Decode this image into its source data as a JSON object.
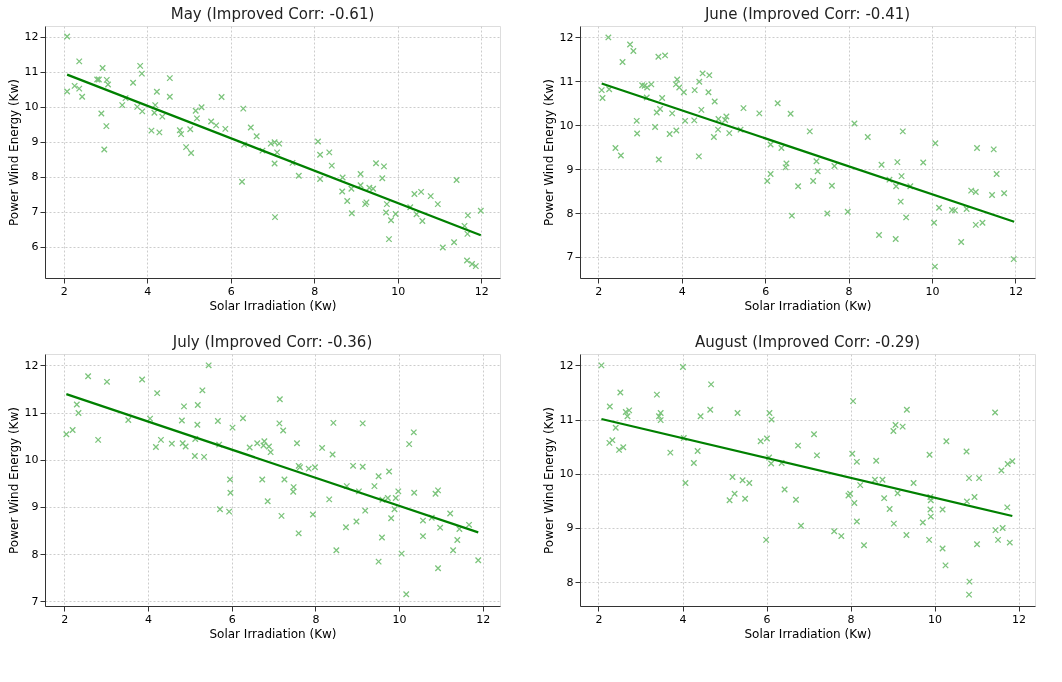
{
  "chart_data": [
    {
      "type": "scatter",
      "title": "May (Improved Corr: -0.61)",
      "xlabel": "Solar Irradiation (Kw)",
      "ylabel": "Power Wind Energy (Kw)",
      "xlim": [
        1.55,
        12.45
      ],
      "ylim": [
        5.1,
        12.3
      ],
      "xticks": [
        2,
        4,
        6,
        8,
        10,
        12
      ],
      "yticks": [
        6,
        7,
        8,
        9,
        10,
        11,
        12
      ],
      "grid": true,
      "series": [
        {
          "type": "scatter",
          "marker": "cross",
          "color": "#7cc47c",
          "x": [
            2.08,
            2.37,
            2.08,
            2.26,
            2.37,
            2.44,
            2.93,
            2.8,
            2.84,
            3.03,
            3.06,
            2.9,
            3.02,
            2.97,
            3.66,
            3.83,
            3.87,
            3.4,
            3.48,
            3.76,
            3.88,
            4.23,
            4.19,
            4.17,
            4.36,
            4.1,
            4.29,
            4.54,
            4.54,
            4.78,
            4.81,
            5.03,
            4.93,
            5.05,
            5.16,
            5.3,
            5.19,
            5.53,
            5.65,
            5.78,
            5.87,
            6.3,
            6.32,
            6.27,
            6.48,
            6.62,
            6.76,
            6.96,
            7.05,
            7.16,
            7.11,
            7.05,
            7.06,
            7.48,
            7.63,
            8.09,
            8.14,
            8.36,
            8.42,
            8.14,
            8.68,
            8.67,
            8.89,
            8.79,
            8.9,
            9.11,
            9.11,
            9.32,
            9.41,
            9.22,
            9.25,
            9.48,
            9.67,
            9.63,
            9.74,
            9.72,
            9.84,
            9.95,
            9.79,
            10.3,
            10.45,
            10.4,
            10.56,
            10.59,
            10.79,
            10.96,
            11.08,
            11.35,
            11.41,
            11.6,
            11.68,
            11.67,
            11.66,
            11.78,
            11.87,
            11.99
          ],
          "values": [
            12.0,
            11.29,
            10.43,
            10.59,
            10.51,
            10.28,
            11.1,
            10.77,
            10.77,
            10.76,
            10.63,
            9.8,
            9.44,
            8.77,
            10.68,
            11.16,
            10.94,
            10.04,
            10.24,
            9.99,
            9.86,
            10.42,
            10.04,
            9.82,
            9.71,
            9.31,
            9.26,
            10.81,
            10.28,
            9.32,
            9.21,
            9.35,
            8.84,
            8.67,
            9.88,
            9.98,
            9.66,
            9.57,
            9.46,
            10.27,
            9.36,
            9.94,
            8.91,
            7.85,
            9.4,
            9.15,
            8.74,
            8.94,
            8.98,
            8.94,
            8.69,
            8.37,
            6.84,
            8.39,
            8.02,
            9.0,
            8.62,
            8.69,
            8.31,
            7.93,
            7.97,
            7.57,
            7.65,
            7.3,
            6.95,
            8.07,
            7.75,
            7.68,
            7.65,
            7.21,
            7.26,
            8.38,
            8.29,
            7.95,
            7.21,
            6.97,
            6.75,
            6.93,
            6.21,
            7.12,
            6.92,
            7.5,
            7.56,
            6.73,
            7.44,
            7.21,
            5.97,
            6.12,
            7.9,
            6.59,
            6.89,
            6.36,
            5.6,
            5.5,
            5.44,
            7.02
          ]
        },
        {
          "type": "line",
          "marker": "none",
          "line_style": "solid",
          "color": "#008000",
          "x": [
            2.08,
            11.99
          ],
          "values": [
            10.91,
            6.32
          ]
        }
      ]
    },
    {
      "type": "scatter",
      "title": "June (Improved Corr: -0.41)",
      "xlabel": "Solar Irradiation (Kw)",
      "ylabel": "Power Wind Energy (Kw)",
      "xlim": [
        1.56,
        12.47
      ],
      "ylim": [
        6.52,
        12.26
      ],
      "xticks": [
        2,
        4,
        6,
        8,
        10,
        12
      ],
      "yticks": [
        7,
        8,
        9,
        10,
        11,
        12
      ],
      "grid": true,
      "series": [
        {
          "type": "scatter",
          "marker": "cross",
          "color": "#7cc47c",
          "x": [
            2.24,
            2.08,
            2.1,
            2.26,
            2.58,
            2.76,
            2.84,
            2.41,
            2.54,
            2.92,
            2.93,
            3.05,
            3.11,
            3.17,
            3.27,
            3.16,
            3.44,
            3.6,
            3.53,
            3.48,
            3.4,
            3.36,
            3.45,
            3.77,
            3.71,
            3.87,
            3.89,
            3.86,
            3.94,
            4.05,
            4.08,
            4.31,
            4.42,
            4.5,
            4.66,
            4.64,
            4.47,
            4.3,
            4.41,
            4.79,
            4.88,
            5.04,
            5.07,
            4.87,
            4.77,
            5.14,
            5.41,
            5.48,
            5.86,
            6.3,
            6.61,
            6.13,
            6.39,
            6.05,
            6.13,
            6.51,
            6.49,
            6.79,
            6.64,
            7.07,
            7.23,
            7.26,
            7.15,
            7.66,
            7.6,
            7.49,
            7.98,
            8.14,
            8.46,
            8.79,
            8.73,
            8.98,
            9.14,
            9.17,
            9.27,
            9.3,
            9.25,
            9.38,
            9.13,
            9.48,
            9.79,
            10.08,
            10.05,
            10.07,
            10.17,
            10.48,
            10.55,
            10.83,
            10.7,
            10.94,
            11.05,
            11.08,
            11.05,
            11.21,
            11.48,
            11.55,
            11.44,
            11.73,
            11.96
          ],
          "values": [
            12.0,
            10.8,
            10.62,
            10.82,
            11.44,
            11.84,
            11.69,
            9.48,
            9.31,
            10.1,
            9.81,
            10.91,
            10.9,
            10.86,
            10.93,
            10.63,
            11.56,
            11.59,
            10.62,
            10.37,
            10.29,
            9.96,
            9.22,
            10.27,
            9.8,
            9.88,
            11.04,
            10.93,
            10.86,
            10.75,
            10.1,
            10.8,
            10.99,
            11.18,
            11.14,
            10.75,
            10.35,
            10.11,
            9.29,
            10.54,
            10.14,
            10.12,
            10.2,
            9.9,
            9.73,
            9.82,
            9.9,
            10.39,
            10.27,
            10.5,
            10.26,
            9.56,
            9.48,
            8.73,
            8.89,
            9.13,
            9.04,
            8.61,
            7.94,
            9.86,
            9.18,
            8.95,
            8.73,
            9.07,
            8.62,
            7.99,
            8.03,
            10.04,
            9.73,
            9.1,
            7.5,
            8.76,
            8.61,
            9.16,
            8.84,
            9.86,
            8.26,
            7.9,
            7.41,
            8.61,
            9.15,
            9.59,
            7.78,
            6.78,
            8.12,
            8.07,
            8.06,
            8.09,
            7.34,
            8.51,
            8.48,
            9.48,
            7.73,
            7.78,
            9.45,
            8.89,
            8.41,
            8.45,
            6.95
          ]
        },
        {
          "type": "line",
          "marker": "none",
          "line_style": "solid",
          "color": "#008000",
          "x": [
            2.08,
            11.97
          ],
          "values": [
            10.95,
            7.8
          ]
        }
      ]
    },
    {
      "type": "scatter",
      "title": "July (Improved Corr: -0.36)",
      "xlabel": "Solar Irradiation (Kw)",
      "ylabel": "Power Wind Energy (Kw)",
      "xlim": [
        1.54,
        12.41
      ],
      "ylim": [
        6.9,
        12.24
      ],
      "xticks": [
        2,
        4,
        6,
        8,
        10,
        12
      ],
      "yticks": [
        7,
        8,
        9,
        10,
        11,
        12
      ],
      "grid": true,
      "series": [
        {
          "type": "scatter",
          "marker": "cross",
          "color": "#7cc47c",
          "x": [
            2.05,
            2.2,
            2.3,
            2.34,
            2.57,
            2.81,
            3.02,
            3.53,
            3.86,
            4.05,
            4.22,
            4.19,
            4.31,
            4.57,
            4.81,
            4.86,
            4.83,
            4.9,
            5.13,
            5.18,
            5.19,
            5.3,
            5.45,
            5.12,
            5.34,
            5.67,
            5.7,
            5.72,
            5.96,
            5.97,
            5.94,
            6.02,
            6.27,
            6.43,
            6.61,
            6.78,
            6.76,
            6.89,
            6.93,
            6.73,
            6.86,
            7.15,
            7.14,
            7.23,
            7.26,
            7.19,
            7.48,
            7.47,
            7.56,
            7.6,
            7.63,
            7.6,
            7.84,
            7.99,
            7.94,
            8.16,
            8.41,
            8.43,
            8.33,
            8.5,
            8.75,
            8.73,
            8.9,
            9.04,
            8.98,
            9.13,
            9.13,
            9.19,
            9.41,
            9.51,
            9.6,
            9.73,
            9.76,
            9.81,
            9.59,
            9.51,
            9.89,
            9.92,
            9.98,
            10.06,
            10.17,
            10.24,
            10.35,
            10.36,
            10.57,
            10.57,
            10.78,
            10.87,
            10.93,
            10.98,
            10.93,
            11.22,
            11.29,
            11.39,
            11.44,
            11.67,
            11.89
          ],
          "values": [
            10.54,
            10.63,
            11.17,
            10.99,
            11.77,
            10.42,
            11.65,
            10.84,
            11.7,
            10.87,
            11.41,
            10.27,
            10.42,
            10.34,
            10.83,
            11.13,
            10.35,
            10.28,
            10.44,
            10.74,
            11.16,
            11.47,
            12.0,
            10.08,
            10.06,
            10.82,
            10.32,
            8.95,
            9.58,
            9.3,
            8.9,
            10.68,
            10.88,
            10.26,
            10.35,
            10.39,
            10.3,
            10.28,
            10.16,
            9.58,
            9.12,
            11.28,
            10.77,
            10.62,
            9.58,
            8.81,
            9.42,
            9.32,
            10.35,
            9.87,
            9.84,
            8.44,
            9.81,
            9.84,
            8.84,
            10.25,
            10.11,
            10.78,
            9.16,
            8.08,
            9.44,
            8.57,
            9.87,
            9.33,
            8.69,
            9.85,
            10.77,
            8.92,
            9.44,
            9.65,
            9.15,
            9.19,
            9.75,
            8.76,
            8.35,
            7.84,
            8.95,
            9.19,
            9.33,
            8.01,
            7.15,
            10.33,
            10.58,
            9.3,
            8.71,
            8.38,
            8.77,
            9.28,
            9.35,
            8.56,
            7.7,
            8.86,
            8.08,
            8.3,
            8.53,
            8.62,
            7.87
          ]
        },
        {
          "type": "line",
          "marker": "none",
          "line_style": "solid",
          "color": "#008000",
          "x": [
            2.05,
            11.89
          ],
          "values": [
            11.39,
            8.46
          ]
        }
      ]
    },
    {
      "type": "scatter",
      "title": "August (Improved Corr: -0.29)",
      "xlabel": "Solar Irradiation (Kw)",
      "ylabel": "Power Wind Energy (Kw)",
      "xlim": [
        1.56,
        12.39
      ],
      "ylim": [
        7.56,
        12.21
      ],
      "xticks": [
        2,
        4,
        6,
        8,
        10,
        12
      ],
      "yticks": [
        8,
        9,
        10,
        11,
        12
      ],
      "grid": true,
      "series": [
        {
          "type": "scatter",
          "marker": "cross",
          "color": "#7cc47c",
          "x": [
            2.07,
            2.27,
            2.52,
            2.41,
            2.26,
            2.33,
            2.49,
            2.59,
            2.65,
            2.73,
            2.69,
            3.39,
            3.44,
            3.48,
            3.48,
            3.71,
            4.01,
            4.03,
            4.07,
            4.27,
            4.36,
            4.43,
            4.66,
            4.68,
            5.31,
            5.19,
            5.24,
            5.12,
            5.43,
            5.49,
            5.59,
            5.86,
            6.01,
            6.07,
            6.12,
            6.06,
            6.11,
            6.36,
            5.99,
            6.43,
            6.7,
            6.75,
            6.82,
            7.13,
            7.2,
            7.61,
            7.78,
            7.95,
            7.99,
            8.06,
            8.04,
            8.15,
            8.09,
            8.15,
            8.23,
            8.32,
            8.61,
            8.58,
            8.76,
            8.8,
            8.93,
            9.02,
            9.07,
            9.12,
            9.24,
            9.03,
            9.33,
            9.34,
            9.5,
            9.72,
            9.88,
            9.9,
            9.91,
            9.9,
            9.91,
            9.87,
            10.19,
            10.19,
            10.26,
            10.28,
            10.76,
            10.82,
            11.06,
            10.95,
            10.77,
            11.01,
            10.83,
            10.82,
            11.44,
            11.45,
            11.62,
            11.51,
            11.59,
            11.74,
            11.85,
            11.73,
            11.79
          ],
          "values": [
            12.0,
            11.24,
            11.5,
            10.85,
            10.57,
            10.62,
            10.44,
            10.49,
            11.14,
            11.17,
            11.06,
            11.46,
            11.06,
            11.12,
            10.99,
            10.39,
            11.97,
            10.66,
            9.83,
            10.2,
            10.42,
            11.06,
            11.18,
            11.65,
            11.12,
            9.94,
            9.63,
            9.51,
            9.88,
            9.54,
            9.83,
            10.6,
            10.65,
            11.12,
            11.0,
            10.3,
            10.19,
            10.2,
            8.78,
            9.71,
            9.52,
            10.52,
            9.04,
            10.73,
            10.34,
            8.94,
            8.85,
            9.6,
            9.63,
            11.34,
            10.37,
            10.22,
            9.46,
            9.12,
            9.79,
            8.68,
            10.24,
            9.89,
            9.89,
            9.55,
            9.35,
            10.79,
            10.9,
            9.64,
            10.87,
            9.08,
            8.87,
            11.18,
            9.83,
            9.1,
            10.35,
            9.57,
            9.51,
            9.34,
            9.21,
            8.78,
            9.34,
            8.62,
            8.31,
            10.6,
            10.41,
            9.92,
            9.92,
            9.57,
            9.49,
            8.7,
            8.01,
            7.77,
            11.13,
            8.96,
            9.0,
            8.78,
            10.06,
            10.18,
            10.23,
            9.38,
            8.73
          ]
        },
        {
          "type": "line",
          "marker": "none",
          "line_style": "solid",
          "color": "#008000",
          "x": [
            2.07,
            11.85
          ],
          "values": [
            11.01,
            9.22
          ]
        }
      ]
    }
  ]
}
